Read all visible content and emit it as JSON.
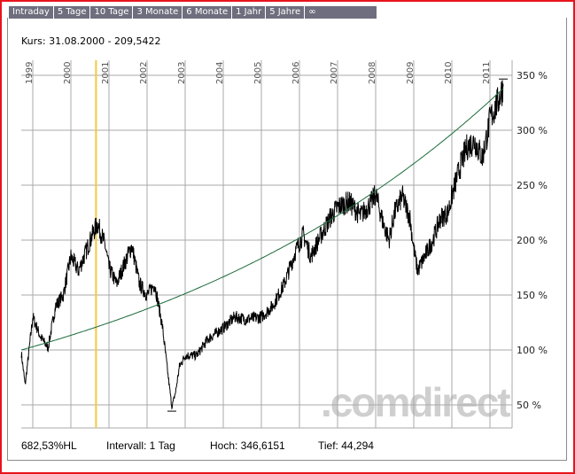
{
  "tabs": [
    "Intraday",
    "5 Tage",
    "10 Tage",
    "3 Monate",
    "6 Monate",
    "1 Jahr",
    "5 Jahre",
    "∞"
  ],
  "kurs_label": "Kurs: 31.08.2000 - 209,5422",
  "footer": {
    "hl": "682,53%HL",
    "intervall": "Intervall: 1 Tag",
    "hoch": "Hoch: 346,6151",
    "tief": "Tief:  44,294"
  },
  "watermark": ".comdirect",
  "colors": {
    "frame": "#e8141c",
    "tabs": "#6e6e7e",
    "grid": "#a8a8a8",
    "price": "#000000",
    "trend": "#1a6b3a",
    "cursor": "#f5c842",
    "watermark": "#c8c8c8"
  },
  "chart_data": {
    "type": "line",
    "xlabel": "",
    "ylabel": "",
    "x_ticks": [
      "1999",
      "2000",
      "2001",
      "2002",
      "2003",
      "2004",
      "2005",
      "2006",
      "2007",
      "2008",
      "2009",
      "2010",
      "2011"
    ],
    "y_ticks": [
      "50 %",
      "100 %",
      "150 %",
      "200 %",
      "250 %",
      "300 %",
      "350 %"
    ],
    "y_tick_values": [
      50,
      100,
      150,
      200,
      250,
      300,
      350
    ],
    "ylim": [
      25,
      360
    ],
    "xlim": [
      1998.7,
      2011.45
    ],
    "grid": true,
    "cursor_date": 2000.66,
    "series": [
      {
        "x": [
          1998.7,
          1998.8,
          1999.0,
          1999.2,
          1999.4,
          1999.6,
          1999.8,
          2000.0,
          2000.2,
          2000.4,
          2000.6,
          2000.7,
          2000.9,
          2001.0,
          2001.2,
          2001.4,
          2001.6,
          2001.8,
          2002.0,
          2002.2,
          2002.4,
          2002.5,
          2002.65,
          2002.75,
          2002.85,
          2003.0,
          2003.3,
          2003.6,
          2004.0,
          2004.3,
          2004.6,
          2005.0,
          2005.3,
          2005.6,
          2005.9,
          2006.1,
          2006.3,
          2006.5,
          2006.8,
          2007.0,
          2007.3,
          2007.6,
          2007.9,
          2008.0,
          2008.2,
          2008.35,
          2008.5,
          2008.7,
          2008.9,
          2009.0,
          2009.1,
          2009.3,
          2009.5,
          2009.7,
          2009.9,
          2010.0,
          2010.2,
          2010.4,
          2010.6,
          2010.8,
          2010.95,
          2011.0,
          2011.2,
          2011.35
        ],
        "y": [
          97,
          68,
          130,
          112,
          102,
          140,
          150,
          185,
          172,
          190,
          208,
          215,
          195,
          175,
          160,
          178,
          195,
          160,
          150,
          160,
          122,
          92,
          48,
          62,
          85,
          95,
          95,
          110,
          120,
          130,
          128,
          130,
          140,
          160,
          190,
          205,
          185,
          200,
          220,
          230,
          235,
          222,
          235,
          242,
          215,
          200,
          225,
          240,
          220,
          192,
          172,
          186,
          200,
          220,
          225,
          240,
          265,
          285,
          290,
          275,
          300,
          310,
          325,
          340
        ]
      },
      {
        "x": [
          1998.7,
          2011.35
        ],
        "y": [
          100,
          338
        ],
        "kind": "exponential-trend"
      }
    ],
    "low_marker": {
      "x": 2002.65,
      "y": 44.294
    },
    "high_marker": {
      "x": 2011.35,
      "y": 346.6151
    }
  }
}
